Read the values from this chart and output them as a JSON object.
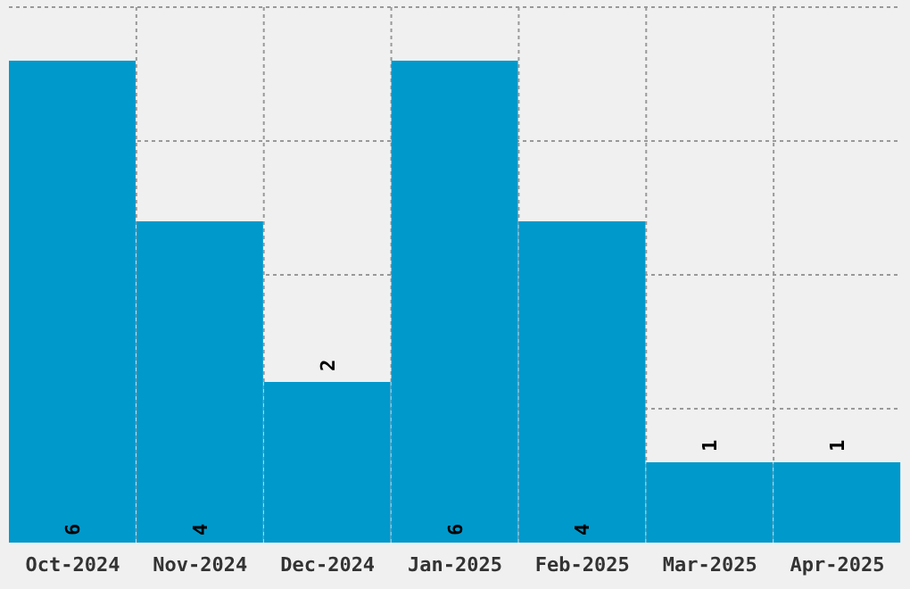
{
  "chart_data": {
    "type": "bar",
    "categories": [
      "Oct-2024",
      "Nov-2024",
      "Dec-2024",
      "Jan-2025",
      "Feb-2025",
      "Mar-2025",
      "Apr-2025"
    ],
    "values": [
      6,
      4,
      2,
      6,
      4,
      1,
      1
    ],
    "color": "#0099cc",
    "data_labels": true,
    "grid": true,
    "tick_labels": "x",
    "ylim": [
      0,
      6.667
    ]
  }
}
